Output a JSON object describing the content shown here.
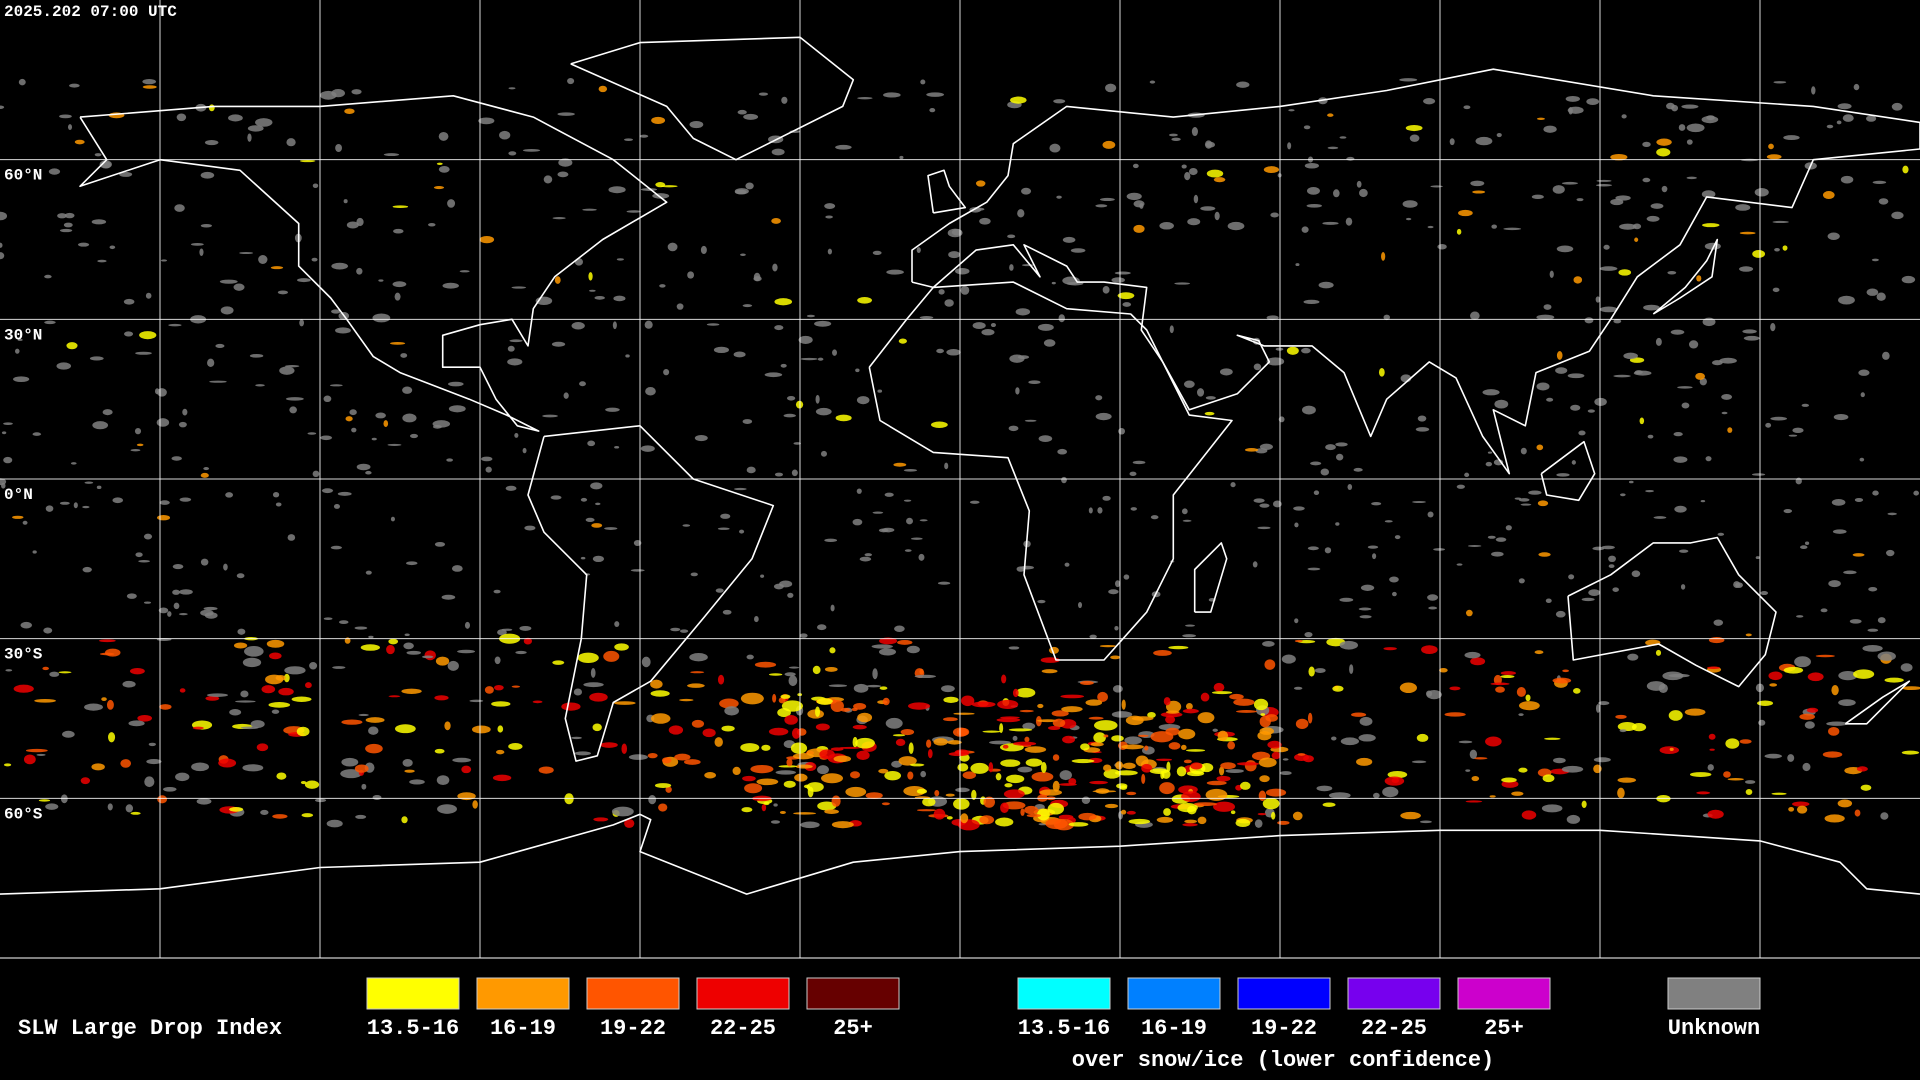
{
  "timestamp": "2025.202 07:00 UTC",
  "grid_labels": [
    "60°N",
    "30°N",
    "0°N",
    "30°S",
    "60°S"
  ],
  "legend": {
    "title": "SLW Large Drop Index",
    "items": [
      {
        "label": "13.5-16",
        "color": "#ffff00"
      },
      {
        "label": "16-19",
        "color": "#ff9900"
      },
      {
        "label": "19-22",
        "color": "#ff5500"
      },
      {
        "label": "22-25",
        "color": "#ee0000"
      },
      {
        "label": "25+",
        "color": "#660000"
      }
    ],
    "snow_items": [
      {
        "label": "13.5-16",
        "color": "#00ffff"
      },
      {
        "label": "16-19",
        "color": "#0080ff"
      },
      {
        "label": "19-22",
        "color": "#0000ff"
      },
      {
        "label": "22-25",
        "color": "#7700ee"
      },
      {
        "label": "25+",
        "color": "#cc00cc"
      }
    ],
    "snow_caption": "over snow/ice (lower confidence)",
    "unknown": {
      "label": "Unknown",
      "color": "#808080"
    }
  }
}
